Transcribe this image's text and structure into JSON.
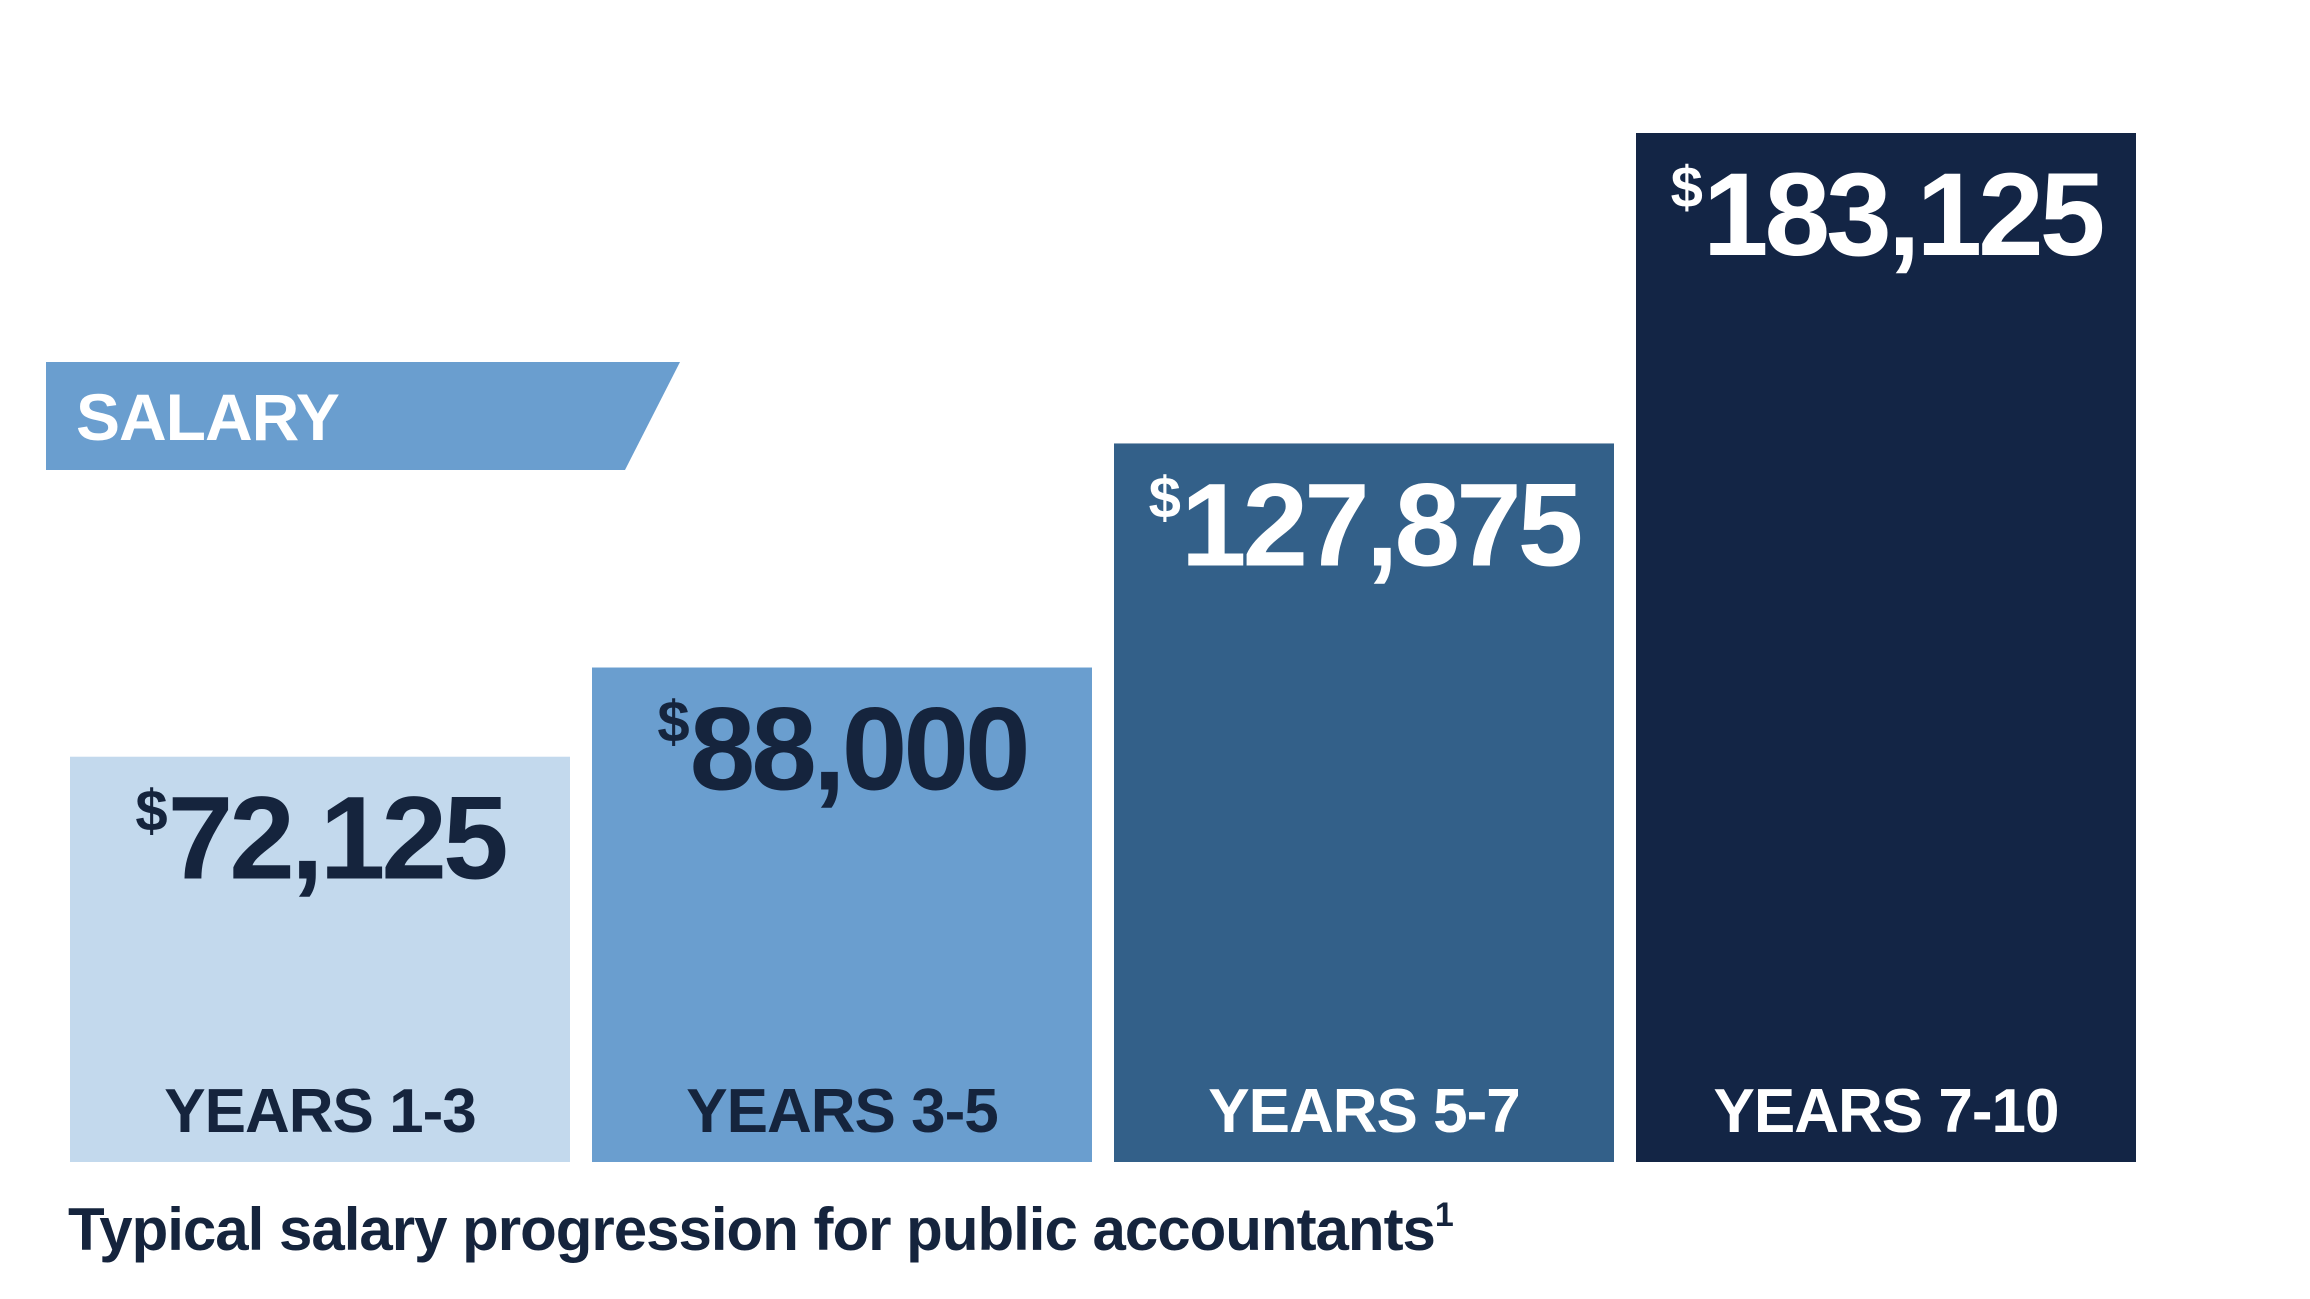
{
  "badge": {
    "label": "SALARY",
    "color": "#6a9ecf"
  },
  "caption": {
    "text": "Typical salary progression for public accountants",
    "footnote_marker": "1"
  },
  "chart_data": {
    "type": "bar",
    "title": "",
    "xlabel": "",
    "ylabel": "",
    "grid": false,
    "categories": [
      "YEARS 1-3",
      "YEARS 3-5",
      "YEARS 5-7",
      "YEARS 7-10"
    ],
    "values": [
      72125,
      88000,
      127875,
      183125
    ],
    "value_labels": [
      "72,125",
      "88,000",
      "127,875",
      "183,125"
    ],
    "currency_symbol": "$",
    "bar_colors": [
      "#c3d9ed",
      "#6a9ecf",
      "#336089",
      "#132545"
    ],
    "label_colors": [
      "#15243d",
      "#15243d",
      "#ffffff",
      "#ffffff"
    ]
  }
}
